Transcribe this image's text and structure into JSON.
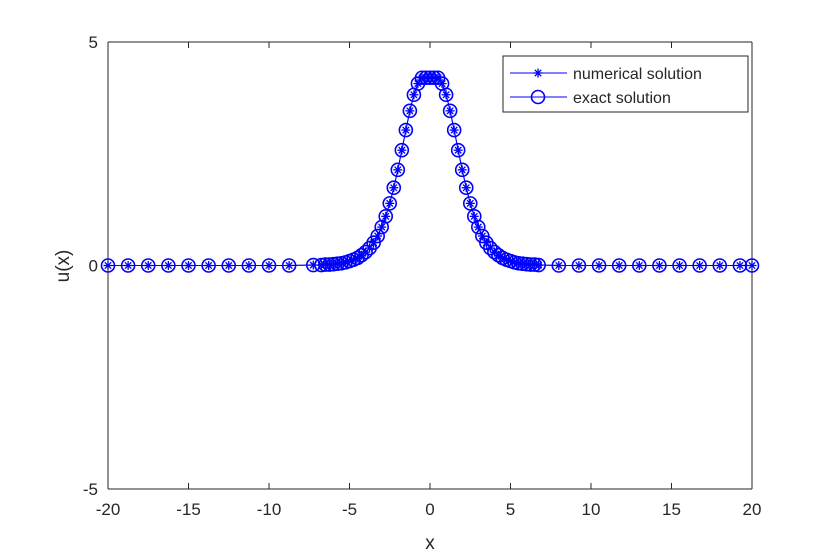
{
  "chart_data": {
    "type": "line",
    "title": "",
    "xlabel": "x",
    "ylabel": "u(x)",
    "xlim": [
      -20,
      20
    ],
    "ylim": [
      -5,
      5
    ],
    "xticks": [
      -20,
      -15,
      -10,
      -5,
      0,
      5,
      10,
      15,
      20
    ],
    "xtick_labels": [
      "-20",
      "-15",
      "-10",
      "-5",
      "0",
      "5",
      "10",
      "15",
      "20"
    ],
    "yticks": [
      -5,
      0,
      5
    ],
    "ytick_labels": [
      "-5",
      "0",
      "5"
    ],
    "grid": false,
    "legend_position": "top-right",
    "series": [
      {
        "name": "numerical solution",
        "marker": "asterisk",
        "color": "#0000ff",
        "x": [
          -20,
          -18.75,
          -17.5,
          -16.25,
          -15,
          -13.75,
          -12.5,
          -11.25,
          -10,
          -8.75,
          -7.25,
          -6.75,
          -6.5,
          -6.25,
          -6,
          -5.75,
          -5.5,
          -5.25,
          -5,
          -4.75,
          -4.5,
          -4.25,
          -4,
          -3.75,
          -3.5,
          -3.25,
          -3,
          -2.75,
          -2.5,
          -2.25,
          -2,
          -1.75,
          -1.5,
          -1.25,
          -1,
          -0.75,
          -0.5,
          -0.25,
          0,
          0.25,
          0.5,
          0.75,
          1,
          1.25,
          1.5,
          1.75,
          2,
          2.25,
          2.5,
          2.75,
          3,
          3.25,
          3.5,
          3.75,
          4,
          4.25,
          4.5,
          4.75,
          5,
          5.25,
          5.5,
          5.75,
          6,
          6.25,
          6.5,
          6.75,
          8,
          9.25,
          10.5,
          11.75,
          13,
          14.25,
          15.5,
          16.75,
          18,
          19.25,
          20
        ],
        "y": [
          0,
          0,
          0,
          0,
          0,
          0,
          0,
          0,
          0,
          0,
          0.01,
          0.01,
          0.02,
          0.02,
          0.03,
          0.04,
          0.05,
          0.07,
          0.1,
          0.13,
          0.17,
          0.23,
          0.3,
          0.39,
          0.51,
          0.66,
          0.86,
          1.1,
          1.39,
          1.74,
          2.14,
          2.58,
          3.03,
          3.46,
          3.82,
          4.07,
          4.2,
          4.2,
          4.2,
          4.2,
          4.2,
          4.07,
          3.82,
          3.46,
          3.03,
          2.58,
          2.14,
          1.74,
          1.39,
          1.1,
          0.86,
          0.66,
          0.51,
          0.39,
          0.3,
          0.23,
          0.17,
          0.13,
          0.1,
          0.07,
          0.05,
          0.04,
          0.03,
          0.02,
          0.02,
          0.01,
          0,
          0,
          0,
          0,
          0,
          0,
          0,
          0,
          0,
          0,
          0
        ]
      },
      {
        "name": "exact solution",
        "marker": "circle",
        "color": "#0000ff",
        "x": [
          -20,
          -18.75,
          -17.5,
          -16.25,
          -15,
          -13.75,
          -12.5,
          -11.25,
          -10,
          -8.75,
          -7.25,
          -6.75,
          -6.5,
          -6.25,
          -6,
          -5.75,
          -5.5,
          -5.25,
          -5,
          -4.75,
          -4.5,
          -4.25,
          -4,
          -3.75,
          -3.5,
          -3.25,
          -3,
          -2.75,
          -2.5,
          -2.25,
          -2,
          -1.75,
          -1.5,
          -1.25,
          -1,
          -0.75,
          -0.5,
          -0.25,
          0,
          0.25,
          0.5,
          0.75,
          1,
          1.25,
          1.5,
          1.75,
          2,
          2.25,
          2.5,
          2.75,
          3,
          3.25,
          3.5,
          3.75,
          4,
          4.25,
          4.5,
          4.75,
          5,
          5.25,
          5.5,
          5.75,
          6,
          6.25,
          6.5,
          6.75,
          8,
          9.25,
          10.5,
          11.75,
          13,
          14.25,
          15.5,
          16.75,
          18,
          19.25,
          20
        ],
        "y": [
          0,
          0,
          0,
          0,
          0,
          0,
          0,
          0,
          0,
          0,
          0.01,
          0.01,
          0.02,
          0.02,
          0.03,
          0.04,
          0.05,
          0.07,
          0.1,
          0.13,
          0.17,
          0.23,
          0.3,
          0.39,
          0.51,
          0.66,
          0.86,
          1.1,
          1.39,
          1.74,
          2.14,
          2.58,
          3.03,
          3.46,
          3.82,
          4.07,
          4.2,
          4.2,
          4.2,
          4.2,
          4.2,
          4.07,
          3.82,
          3.46,
          3.03,
          2.58,
          2.14,
          1.74,
          1.39,
          1.1,
          0.86,
          0.66,
          0.51,
          0.39,
          0.3,
          0.23,
          0.17,
          0.13,
          0.1,
          0.07,
          0.05,
          0.04,
          0.03,
          0.02,
          0.02,
          0.01,
          0,
          0,
          0,
          0,
          0,
          0,
          0,
          0,
          0,
          0,
          0
        ]
      }
    ]
  }
}
